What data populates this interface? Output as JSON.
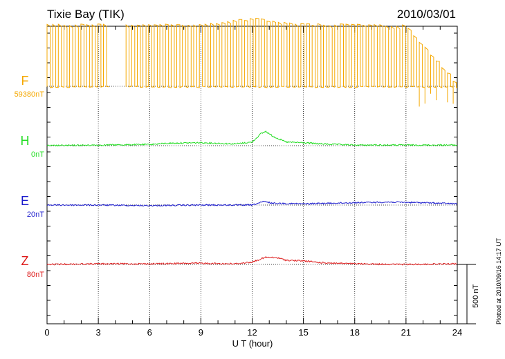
{
  "header": {
    "station": "Tixie Bay (TIK)",
    "date": "2010/03/01"
  },
  "footer": {
    "plotted": "Plotted at 2010/09/16 14:17 UT"
  },
  "scale": {
    "label": "500 nT",
    "value_nT": 500
  },
  "colors": {
    "F": "#f5a800",
    "H": "#22dd22",
    "E": "#1c1ccc",
    "Z": "#dd1a1a",
    "grid": "#000000"
  },
  "chart_data": {
    "type": "line",
    "title": "Tixie Bay (TIK)",
    "xlabel": "U T (hour)",
    "ylabel": "",
    "xlim": [
      0,
      24
    ],
    "xticks": [
      0,
      3,
      6,
      9,
      12,
      15,
      18,
      21,
      24
    ],
    "grid": "vertical dotted every 3 hours; dotted baseline per channel",
    "scale_bar_nT": 500,
    "series": [
      {
        "name": "F",
        "baseline_label": "59380nT",
        "color": "#f5a800",
        "note": "square-wave oscillation between baseline and about +510 nT; gap near 3.4–4.5 h; noisy spikes after ~21.5 h",
        "pattern": "square",
        "high_nT": 510,
        "gaps": [
          [
            3.45,
            4.45
          ]
        ],
        "noisy_from": 21.5,
        "x": [
          0,
          3,
          6,
          9,
          12,
          15,
          18,
          21,
          24
        ],
        "values": [
          510,
          510,
          510,
          510,
          560,
          510,
          510,
          500,
          0
        ]
      },
      {
        "name": "H",
        "baseline_label": "0nT",
        "color": "#22dd22",
        "x": [
          0,
          3,
          6,
          7,
          9,
          11,
          12,
          12.5,
          12.8,
          13.2,
          14,
          15,
          16,
          18,
          21,
          24
        ],
        "values": [
          0,
          5,
          10,
          20,
          25,
          15,
          30,
          100,
          120,
          80,
          30,
          25,
          15,
          5,
          5,
          5
        ]
      },
      {
        "name": "E",
        "baseline_label": "20nT",
        "color": "#1c1ccc",
        "x": [
          0,
          3,
          6,
          9,
          12,
          12.7,
          13.2,
          15,
          18,
          20,
          22,
          24
        ],
        "values": [
          0,
          0,
          -5,
          0,
          0,
          30,
          15,
          10,
          20,
          25,
          20,
          10
        ]
      },
      {
        "name": "Z",
        "baseline_label": "80nT",
        "color": "#dd1a1a",
        "x": [
          0,
          3,
          6,
          9,
          11,
          12,
          12.8,
          13.5,
          14,
          15,
          16,
          18,
          21,
          24
        ],
        "values": [
          0,
          5,
          5,
          10,
          5,
          20,
          60,
          55,
          35,
          30,
          15,
          5,
          0,
          5
        ]
      }
    ]
  }
}
